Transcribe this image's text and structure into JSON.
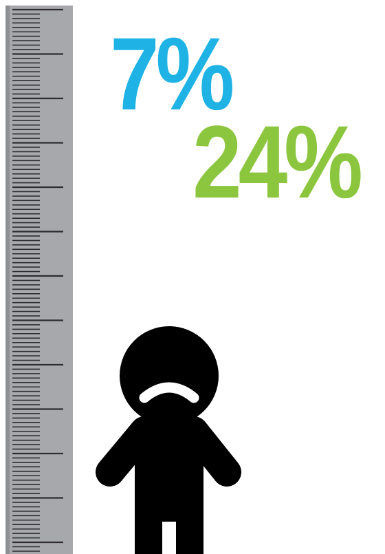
{
  "stats": {
    "first": {
      "value": "7%",
      "color": "#1fb3e5"
    },
    "second": {
      "value": "24%",
      "color": "#8cc63f"
    }
  },
  "ruler": {
    "color": "#a7a8ac",
    "tick_color": "#2d2d2f"
  },
  "figure": {
    "icon": "sad-child-icon",
    "color": "#000000"
  }
}
